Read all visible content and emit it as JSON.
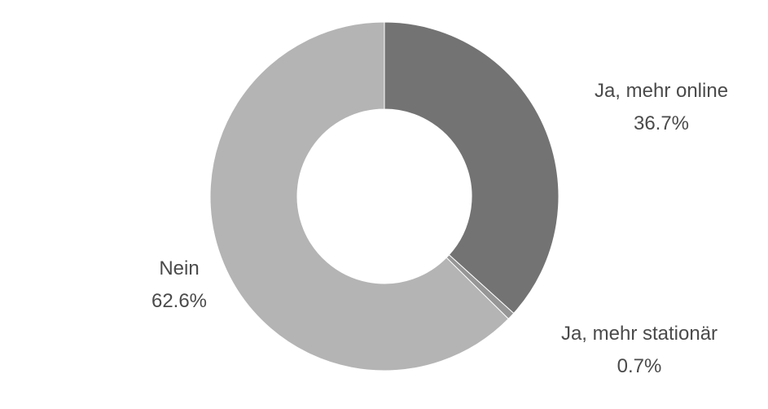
{
  "chart_data": {
    "type": "pie",
    "donut": true,
    "title": "",
    "slices": [
      {
        "label": "Ja, mehr online",
        "value": 36.7,
        "value_label": "36.7%",
        "color": "#737373"
      },
      {
        "label": "Ja, mehr stationär",
        "value": 0.7,
        "value_label": "0.7%",
        "color": "#969696"
      },
      {
        "label": "Nein",
        "value": 62.6,
        "value_label": "62.6%",
        "color": "#b4b4b4"
      }
    ],
    "start_angle_deg": 0,
    "direction": "clockwise",
    "legend": "none",
    "labels_outside": true
  }
}
